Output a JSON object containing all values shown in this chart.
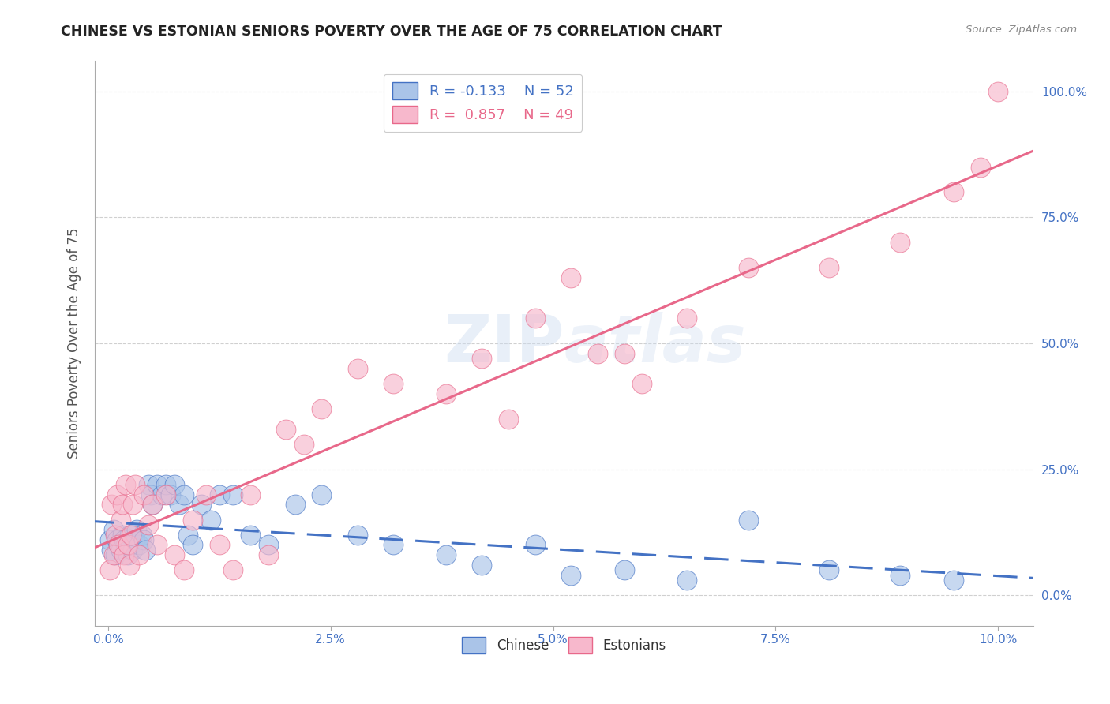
{
  "title": "CHINESE VS ESTONIAN SENIORS POVERTY OVER THE AGE OF 75 CORRELATION CHART",
  "source": "Source: ZipAtlas.com",
  "ylabel": "Seniors Poverty Over the Age of 75",
  "xlabel_vals": [
    0.0,
    2.5,
    5.0,
    7.5,
    10.0
  ],
  "ylabel_vals": [
    0.0,
    25.0,
    50.0,
    75.0,
    100.0
  ],
  "chinese_color": "#aac4e8",
  "estonian_color": "#f7b8cc",
  "chinese_line_color": "#4472c4",
  "estonian_line_color": "#e8688a",
  "watermark_color": "#d0dff5",
  "grid_color": "#d0d0d0",
  "title_color": "#222222",
  "source_color": "#888888",
  "tick_color": "#4472c4",
  "legend_r_chinese": "-0.133",
  "legend_n_chinese": "52",
  "legend_r_estonian": "0.857",
  "legend_n_estonian": "49",
  "chinese_x": [
    0.02,
    0.04,
    0.06,
    0.08,
    0.1,
    0.12,
    0.14,
    0.16,
    0.18,
    0.2,
    0.22,
    0.24,
    0.26,
    0.28,
    0.3,
    0.32,
    0.35,
    0.38,
    0.4,
    0.42,
    0.45,
    0.48,
    0.5,
    0.55,
    0.6,
    0.65,
    0.7,
    0.75,
    0.8,
    0.85,
    0.9,
    0.95,
    1.05,
    1.15,
    1.25,
    1.4,
    1.6,
    1.8,
    2.1,
    2.4,
    2.8,
    3.2,
    3.8,
    4.2,
    4.8,
    5.2,
    5.8,
    6.5,
    7.2,
    8.1,
    8.9,
    9.5
  ],
  "chinese_y": [
    11,
    9,
    13,
    8,
    11,
    10,
    9,
    12,
    11,
    10,
    8,
    12,
    10,
    9,
    11,
    13,
    10,
    12,
    11,
    9,
    22,
    20,
    18,
    22,
    20,
    22,
    20,
    22,
    18,
    20,
    12,
    10,
    18,
    15,
    20,
    20,
    12,
    10,
    18,
    20,
    12,
    10,
    8,
    6,
    10,
    4,
    5,
    3,
    15,
    5,
    4,
    3
  ],
  "estonian_x": [
    0.02,
    0.04,
    0.06,
    0.08,
    0.1,
    0.12,
    0.14,
    0.16,
    0.18,
    0.2,
    0.22,
    0.24,
    0.26,
    0.28,
    0.3,
    0.35,
    0.4,
    0.45,
    0.5,
    0.55,
    0.65,
    0.75,
    0.85,
    0.95,
    1.1,
    1.25,
    1.4,
    1.6,
    1.8,
    2.0,
    2.2,
    2.4,
    2.8,
    3.2,
    3.8,
    4.2,
    4.8,
    5.2,
    5.8,
    6.5,
    7.2,
    8.1,
    8.9,
    9.5,
    9.8,
    10.0,
    4.5,
    5.5,
    6.0
  ],
  "estonian_y": [
    5,
    18,
    8,
    12,
    20,
    10,
    15,
    18,
    8,
    22,
    10,
    6,
    12,
    18,
    22,
    8,
    20,
    14,
    18,
    10,
    20,
    8,
    5,
    15,
    20,
    10,
    5,
    20,
    8,
    33,
    30,
    37,
    45,
    42,
    40,
    47,
    55,
    63,
    48,
    55,
    65,
    65,
    70,
    80,
    85,
    100,
    35,
    48,
    42
  ]
}
